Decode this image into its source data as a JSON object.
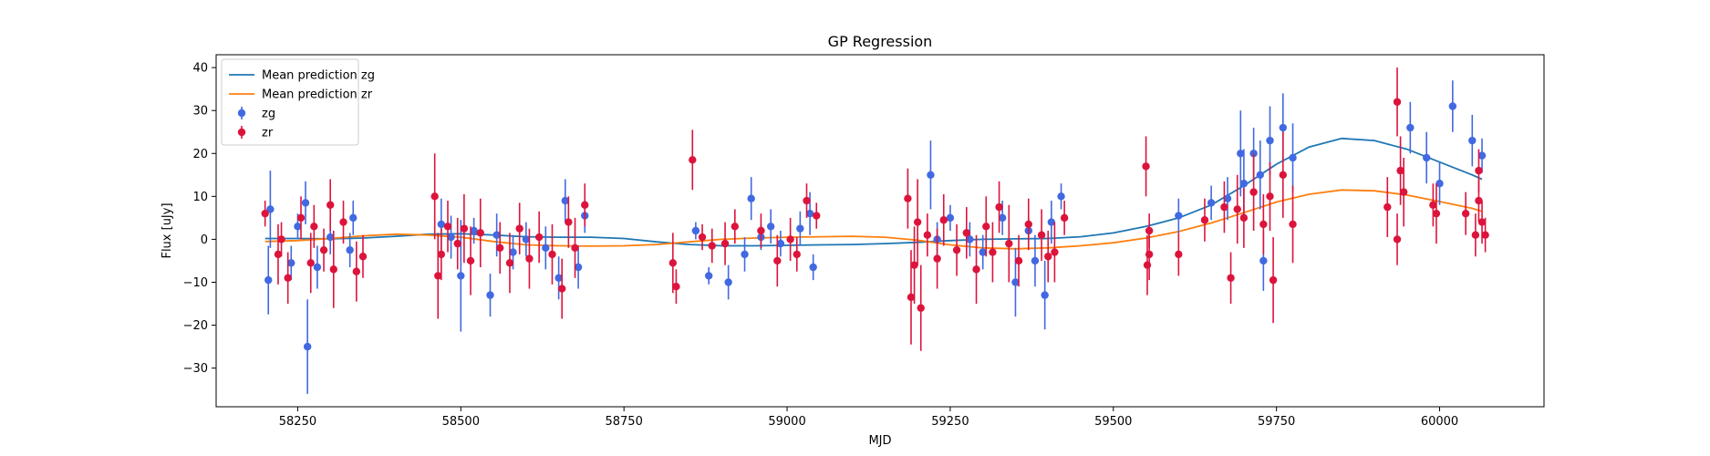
{
  "chart_data": {
    "type": "scatter",
    "title": "GP Regression",
    "xlabel": "MJD",
    "ylabel": "Flux [uJy]",
    "xlim": [
      58125,
      60160
    ],
    "ylim": [
      -39,
      43
    ],
    "xticks": [
      58250,
      58500,
      58750,
      59000,
      59250,
      59500,
      59750,
      60000
    ],
    "yticks": [
      -30,
      -20,
      -10,
      0,
      10,
      20,
      30,
      40
    ],
    "legend_position": "upper left",
    "grid": false,
    "lines": [
      {
        "name": "Mean prediction zg",
        "color": "#1f77b4",
        "x": [
          58200,
          58250,
          58300,
          58350,
          58400,
          58450,
          58500,
          58550,
          58600,
          58650,
          58700,
          58750,
          58800,
          58850,
          58900,
          58950,
          59000,
          59050,
          59100,
          59150,
          59200,
          59250,
          59300,
          59350,
          59400,
          59450,
          59500,
          59550,
          59600,
          59650,
          59700,
          59750,
          59800,
          59850,
          59900,
          59950,
          60000,
          60050,
          60065
        ],
        "y": [
          0.2,
          0.2,
          0.1,
          0.3,
          0.7,
          1.2,
          1.3,
          1.0,
          0.6,
          0.5,
          0.5,
          0.2,
          -0.6,
          -1.2,
          -1.5,
          -1.5,
          -1.4,
          -1.3,
          -1.2,
          -1.0,
          -0.7,
          -0.3,
          0.0,
          0.1,
          0.2,
          0.6,
          1.5,
          3.0,
          5.0,
          8.0,
          12.5,
          17.5,
          21.5,
          23.5,
          23.0,
          21.0,
          18.0,
          15.0,
          14.0
        ]
      },
      {
        "name": "Mean prediction zr",
        "color": "#ff7f0e",
        "x": [
          58200,
          58250,
          58300,
          58350,
          58400,
          58450,
          58500,
          58550,
          58600,
          58650,
          58700,
          58750,
          58800,
          58850,
          58900,
          58950,
          59000,
          59050,
          59100,
          59150,
          59200,
          59250,
          59300,
          59350,
          59400,
          59450,
          59500,
          59550,
          59600,
          59650,
          59700,
          59750,
          59800,
          59850,
          59900,
          59950,
          60000,
          60050,
          60065
        ],
        "y": [
          -0.5,
          -0.3,
          0.2,
          0.8,
          1.2,
          1.0,
          0.5,
          -0.5,
          -1.3,
          -1.5,
          -1.6,
          -1.5,
          -1.2,
          -0.6,
          0.0,
          0.3,
          0.5,
          0.6,
          0.7,
          0.5,
          -0.2,
          -1.3,
          -2.0,
          -2.2,
          -2.0,
          -1.5,
          -0.8,
          0.3,
          1.8,
          3.8,
          6.2,
          8.7,
          10.5,
          11.5,
          11.3,
          10.3,
          8.8,
          7.2,
          6.5
        ]
      }
    ],
    "series": [
      {
        "name": "zg",
        "color": "#4169e1",
        "points": [
          [
            58205,
            -9.5,
            8
          ],
          [
            58208,
            7,
            9
          ],
          [
            58240,
            -5.5,
            4
          ],
          [
            58250,
            3,
            3
          ],
          [
            58262,
            8.5,
            5
          ],
          [
            58265,
            -25,
            11
          ],
          [
            58280,
            -6.5,
            5
          ],
          [
            58300,
            0.5,
            4
          ],
          [
            58330,
            -2.5,
            4
          ],
          [
            58335,
            5,
            4
          ],
          [
            58470,
            3.5,
            6
          ],
          [
            58485,
            0.5,
            5
          ],
          [
            58500,
            -8.5,
            13
          ],
          [
            58520,
            2,
            3
          ],
          [
            58545,
            -13,
            5
          ],
          [
            58555,
            1,
            5
          ],
          [
            58580,
            -3,
            4
          ],
          [
            58600,
            0,
            4
          ],
          [
            58630,
            -2,
            5
          ],
          [
            58650,
            -9,
            5
          ],
          [
            58660,
            9,
            5
          ],
          [
            58680,
            -6.5,
            5
          ],
          [
            58690,
            5.5,
            4
          ],
          [
            58860,
            2,
            2
          ],
          [
            58880,
            -8.5,
            2
          ],
          [
            58910,
            -10,
            4
          ],
          [
            58935,
            -3.5,
            4
          ],
          [
            58945,
            9.5,
            5
          ],
          [
            58960,
            0.5,
            3
          ],
          [
            58975,
            3,
            4
          ],
          [
            58990,
            -1,
            3
          ],
          [
            59020,
            2.5,
            4
          ],
          [
            59035,
            6,
            5
          ],
          [
            59040,
            -6.5,
            3
          ],
          [
            59220,
            15,
            8
          ],
          [
            59230,
            0,
            4
          ],
          [
            59250,
            5,
            3
          ],
          [
            59280,
            0,
            4
          ],
          [
            59300,
            -3,
            4
          ],
          [
            59330,
            5,
            4
          ],
          [
            59350,
            -10,
            8
          ],
          [
            59370,
            2,
            3
          ],
          [
            59380,
            -5,
            6
          ],
          [
            59395,
            -13,
            8
          ],
          [
            59405,
            4,
            5
          ],
          [
            59420,
            10,
            3
          ],
          [
            59600,
            5.5,
            4
          ],
          [
            59650,
            8.5,
            4
          ],
          [
            59675,
            9.5,
            5
          ],
          [
            59695,
            20,
            10
          ],
          [
            59700,
            13,
            8
          ],
          [
            59715,
            20,
            6
          ],
          [
            59725,
            15,
            8
          ],
          [
            59740,
            23,
            8
          ],
          [
            59760,
            26,
            8
          ],
          [
            59775,
            19,
            8
          ],
          [
            59730,
            -5,
            7
          ],
          [
            59955,
            26,
            6
          ],
          [
            59980,
            19,
            6
          ],
          [
            60000,
            13,
            5
          ],
          [
            60020,
            31,
            6
          ],
          [
            60050,
            23,
            6
          ],
          [
            60065,
            19.5,
            4
          ]
        ]
      },
      {
        "name": "zr",
        "color": "#dc143c",
        "points": [
          [
            58200,
            6,
            3
          ],
          [
            58220,
            -3.5,
            7
          ],
          [
            58225,
            0,
            4
          ],
          [
            58235,
            -9,
            6
          ],
          [
            58255,
            5,
            5
          ],
          [
            58270,
            -5.5,
            7
          ],
          [
            58275,
            3,
            5
          ],
          [
            58290,
            -2.5,
            5
          ],
          [
            58300,
            8,
            6
          ],
          [
            58305,
            -7,
            9
          ],
          [
            58320,
            4,
            5
          ],
          [
            58340,
            -7.5,
            7
          ],
          [
            58350,
            -4,
            5
          ],
          [
            58460,
            10,
            10
          ],
          [
            58465,
            -8.5,
            10
          ],
          [
            58470,
            -3.5,
            6
          ],
          [
            58480,
            3,
            6
          ],
          [
            58495,
            -1,
            6
          ],
          [
            58505,
            2.5,
            8
          ],
          [
            58515,
            -5,
            8
          ],
          [
            58530,
            1.5,
            8
          ],
          [
            58560,
            -2,
            6
          ],
          [
            58575,
            -5.5,
            7
          ],
          [
            58590,
            2.5,
            6
          ],
          [
            58605,
            -4.5,
            7
          ],
          [
            58620,
            0.5,
            6
          ],
          [
            58640,
            -3.5,
            7
          ],
          [
            58655,
            -11.5,
            7
          ],
          [
            58665,
            4,
            6
          ],
          [
            58675,
            -2,
            7
          ],
          [
            58690,
            8,
            5
          ],
          [
            58825,
            -5.5,
            7
          ],
          [
            58830,
            -11,
            4
          ],
          [
            58855,
            18.5,
            7
          ],
          [
            58870,
            0.5,
            3
          ],
          [
            58885,
            -1.5,
            4
          ],
          [
            58905,
            -1,
            5
          ],
          [
            58920,
            3,
            4
          ],
          [
            58960,
            2,
            4
          ],
          [
            58985,
            -5,
            6
          ],
          [
            59005,
            0,
            5
          ],
          [
            59015,
            -3.5,
            4
          ],
          [
            59030,
            9,
            4
          ],
          [
            59045,
            5.5,
            3
          ],
          [
            59185,
            9.5,
            7
          ],
          [
            59190,
            -13.5,
            11
          ],
          [
            59195,
            -6,
            9
          ],
          [
            59200,
            4,
            10
          ],
          [
            59205,
            -16,
            10
          ],
          [
            59215,
            1,
            5
          ],
          [
            59230,
            -4.5,
            7
          ],
          [
            59240,
            4.5,
            6
          ],
          [
            59260,
            -2.5,
            6
          ],
          [
            59275,
            1.5,
            6
          ],
          [
            59290,
            -7,
            8
          ],
          [
            59305,
            3,
            7
          ],
          [
            59315,
            -3,
            7
          ],
          [
            59325,
            7.5,
            6
          ],
          [
            59340,
            -1,
            9
          ],
          [
            59355,
            -5,
            6
          ],
          [
            59370,
            3.5,
            6
          ],
          [
            59390,
            1,
            6
          ],
          [
            59400,
            -4,
            6
          ],
          [
            59410,
            -3,
            7
          ],
          [
            59425,
            5,
            4
          ],
          [
            59550,
            17,
            7
          ],
          [
            59552,
            -6,
            7
          ],
          [
            59555,
            -3.5,
            6
          ],
          [
            59555,
            2,
            4
          ],
          [
            59600,
            -3.5,
            5
          ],
          [
            59640,
            4.5,
            5
          ],
          [
            59670,
            7.5,
            6
          ],
          [
            59680,
            -9,
            6
          ],
          [
            59690,
            7,
            8
          ],
          [
            59700,
            5,
            7
          ],
          [
            59715,
            11,
            9
          ],
          [
            59730,
            3.5,
            7
          ],
          [
            59740,
            10,
            8
          ],
          [
            59745,
            -9.5,
            10
          ],
          [
            59760,
            15,
            10
          ],
          [
            59775,
            3.5,
            9
          ],
          [
            59920,
            7.5,
            7
          ],
          [
            59935,
            0,
            6
          ],
          [
            59935,
            32,
            8
          ],
          [
            59940,
            16,
            8
          ],
          [
            59945,
            11,
            8
          ],
          [
            59990,
            8,
            5
          ],
          [
            59995,
            6,
            7
          ],
          [
            60040,
            6,
            5
          ],
          [
            60055,
            1,
            5
          ],
          [
            60060,
            9,
            5
          ],
          [
            60065,
            4,
            5
          ],
          [
            60070,
            1,
            4
          ],
          [
            60060,
            16,
            5
          ]
        ]
      }
    ]
  },
  "legend": [
    {
      "label": "Mean prediction zg",
      "kind": "line",
      "color": "#1f77b4"
    },
    {
      "label": "Mean prediction zr",
      "kind": "line",
      "color": "#ff7f0e"
    },
    {
      "label": "zg",
      "kind": "errorbar",
      "color": "#4169e1"
    },
    {
      "label": "zr",
      "kind": "errorbar",
      "color": "#dc143c"
    }
  ]
}
